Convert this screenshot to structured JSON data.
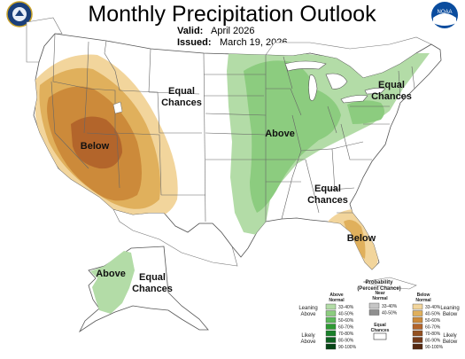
{
  "header": {
    "title": "Monthly Precipitation Outlook",
    "valid_label": "Valid:",
    "valid_value": "April 2026",
    "issued_label": "Issued:",
    "issued_value": "March 19, 2026",
    "left_logo_icon": "doc-seal-icon",
    "right_logo_icon": "noaa-logo-icon",
    "noaa_text": "NOAA"
  },
  "map_labels": {
    "equal_chances": [
      "Equal",
      "Chances"
    ],
    "below": "Below",
    "above": "Above"
  },
  "legend": {
    "title": "Probability",
    "subtitle": "(Percent Chance)",
    "above_header": [
      "Above",
      "Normal"
    ],
    "near_header": [
      "Near",
      "Normal"
    ],
    "below_header": [
      "Below",
      "Normal"
    ],
    "equal_header": [
      "Equal",
      "Chances"
    ],
    "leaning_above": [
      "Leaning",
      "Above"
    ],
    "likely_above": [
      "Likely",
      "Above"
    ],
    "leaning_below": [
      "Leaning",
      "Below"
    ],
    "likely_below": [
      "Likely",
      "Below"
    ],
    "bins": [
      "33-40%",
      "40-50%",
      "50-60%",
      "60-70%",
      "70-80%",
      "80-90%",
      "90-100%"
    ],
    "near_bins": [
      "33-40%",
      "40-50%"
    ],
    "above_colors": [
      "#b3dca7",
      "#8ccc7f",
      "#5cb85a",
      "#2e9a33",
      "#19802a",
      "#0d6020",
      "#064516"
    ],
    "below_colors": [
      "#f2d59c",
      "#e0b05c",
      "#cc8a3a",
      "#b3652b",
      "#935020",
      "#733918",
      "#552810"
    ],
    "near_colors": [
      "#c6c6c6",
      "#8f8f8f"
    ]
  }
}
